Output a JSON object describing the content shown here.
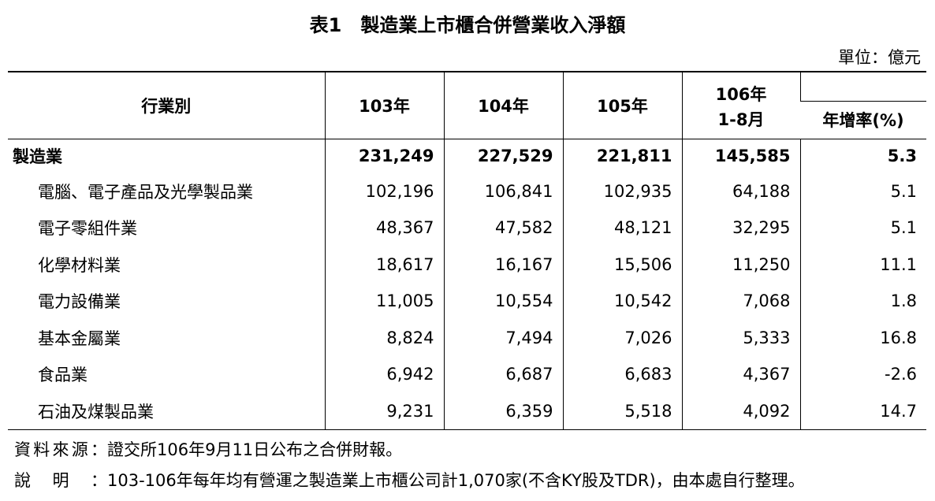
{
  "title": "表1　製造業上市櫃合併營業收入淨額",
  "unit": "單位：億元",
  "table": {
    "header": {
      "industry": "行業別",
      "years": [
        "103年",
        "104年",
        "105年"
      ],
      "current": [
        "106年",
        "1-8月"
      ],
      "growth": "年增率(%)"
    },
    "total": {
      "name": "製造業",
      "values": [
        "231,249",
        "227,529",
        "221,811",
        "145,585",
        "5.3"
      ]
    },
    "rows": [
      {
        "name": "電腦、電子產品及光學製品業",
        "values": [
          "102,196",
          "106,841",
          "102,935",
          "64,188",
          "5.1"
        ]
      },
      {
        "name": "電子零組件業",
        "values": [
          "48,367",
          "47,582",
          "48,121",
          "32,295",
          "5.1"
        ]
      },
      {
        "name": "化學材料業",
        "values": [
          "18,617",
          "16,167",
          "15,506",
          "11,250",
          "11.1"
        ]
      },
      {
        "name": "電力設備業",
        "values": [
          "11,005",
          "10,554",
          "10,542",
          "7,068",
          "1.8"
        ]
      },
      {
        "name": "基本金屬業",
        "values": [
          "8,824",
          "7,494",
          "7,026",
          "5,333",
          "16.8"
        ]
      },
      {
        "name": "食品業",
        "values": [
          "6,942",
          "6,687",
          "6,683",
          "4,367",
          "-2.6"
        ]
      },
      {
        "name": "石油及煤製品業",
        "values": [
          "9,231",
          "6,359",
          "5,518",
          "4,092",
          "14.7"
        ]
      }
    ]
  },
  "notes": [
    {
      "label": "資料來源：",
      "text": "證交所106年9月11日公布之合併財報。"
    },
    {
      "label": "說明：",
      "text": "103-106年每年均有營運之製造業上市櫃公司計1,070家(不含KY股及TDR)，由本處自行整理。"
    }
  ]
}
